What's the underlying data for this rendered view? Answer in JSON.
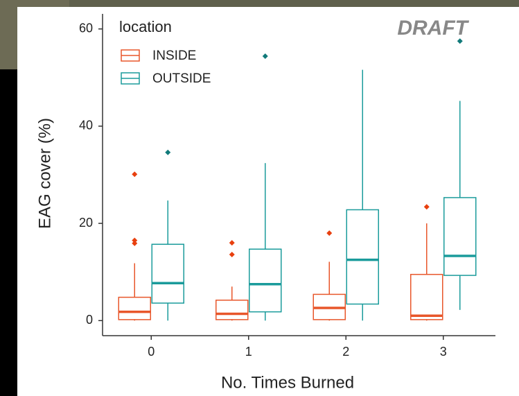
{
  "chart_data": {
    "type": "box",
    "watermark": "DRAFT",
    "x_label": "No. Times Burned",
    "y_label": "EAG cover (%)",
    "legend_title": "location",
    "legend_position": "top-left",
    "categories": [
      "0",
      "1",
      "2",
      "3"
    ],
    "ylim": [
      -3.1,
      63.1
    ],
    "yticks": [
      0,
      20,
      40,
      60
    ],
    "series": [
      {
        "name": "INSIDE",
        "color": "#e8562a",
        "outlier_color": "#e8400f",
        "min": [
          0,
          0,
          0,
          0
        ],
        "q1": [
          0.2,
          0.2,
          0.2,
          0.2
        ],
        "median": [
          1.8,
          1.4,
          2.6,
          1.0
        ],
        "q3": [
          4.8,
          4.2,
          5.4,
          9.5
        ],
        "max": [
          11.8,
          7.0,
          12.1,
          20.0
        ],
        "outliers": [
          [
            30.1,
            16.5,
            15.9
          ],
          [
            16.0,
            13.6
          ],
          [
            18.0
          ],
          [
            23.4
          ]
        ]
      },
      {
        "name": "OUTSIDE",
        "color": "#1a9b9b",
        "outlier_color": "#117a7a",
        "min": [
          0,
          0,
          0,
          2.2
        ],
        "q1": [
          3.6,
          1.8,
          3.4,
          9.3
        ],
        "median": [
          7.7,
          7.5,
          12.5,
          13.3
        ],
        "q3": [
          15.7,
          14.7,
          22.8,
          25.3
        ],
        "max": [
          24.7,
          32.4,
          51.6,
          45.2
        ],
        "outliers": [
          [
            34.6
          ],
          [
            54.4
          ],
          [],
          [
            57.5
          ]
        ]
      }
    ]
  }
}
